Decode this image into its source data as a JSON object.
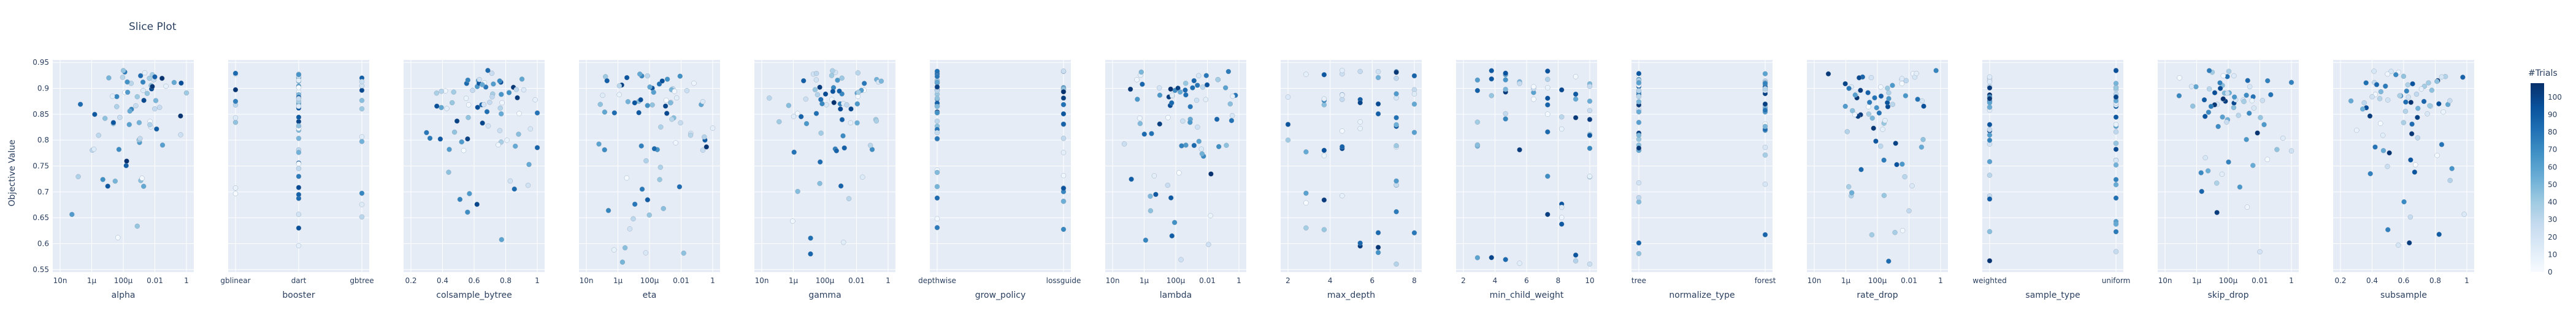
{
  "chart_data": {
    "type": "scatter",
    "title": "Slice Plot",
    "ylabel": "Objective Value",
    "ylim": [
      0.545,
      0.955
    ],
    "yticks": [
      "0.55",
      "0.6",
      "0.65",
      "0.7",
      "0.75",
      "0.8",
      "0.85",
      "0.9",
      "0.95"
    ],
    "grid": true,
    "colorbar": {
      "title": "#Trials",
      "range": [
        0,
        108
      ],
      "ticks": [
        "0",
        "10",
        "20",
        "30",
        "40",
        "50",
        "60",
        "70",
        "80",
        "90",
        "100"
      ],
      "colorscale": [
        "#f7fbff",
        "#deebf7",
        "#c6dbef",
        "#9ecae1",
        "#6baed6",
        "#4292c6",
        "#2171b5",
        "#08519c",
        "#08306b"
      ]
    },
    "panels": [
      {
        "param": "alpha",
        "xlabel": "alpha",
        "xscale": "log",
        "ticklabels": [
          "10n",
          "1µ",
          "100µ",
          "0.01",
          "1"
        ],
        "n": 70
      },
      {
        "param": "booster",
        "xlabel": "booster",
        "xscale": "category",
        "ticklabels": [
          "gblinear",
          "dart",
          "gbtree"
        ],
        "n": 60
      },
      {
        "param": "colsample_bytree",
        "xlabel": "colsample_bytree",
        "xscale": "linear",
        "ticklabels": [
          "0.2",
          "0.4",
          "0.6",
          "0.8",
          "1"
        ],
        "n": 75
      },
      {
        "param": "eta",
        "xlabel": "eta",
        "xscale": "log",
        "ticklabels": [
          "10n",
          "1µ",
          "100µ",
          "0.01",
          "1"
        ],
        "n": 75
      },
      {
        "param": "gamma",
        "xlabel": "gamma",
        "xscale": "log",
        "ticklabels": [
          "10n",
          "1µ",
          "100µ",
          "0.01",
          "1"
        ],
        "n": 70
      },
      {
        "param": "grow_policy",
        "xlabel": "grow_policy",
        "xscale": "category",
        "ticklabels": [
          "depthwise",
          "lossguide"
        ],
        "n": 60
      },
      {
        "param": "lambda",
        "xlabel": "lambda",
        "xscale": "log",
        "ticklabels": [
          "10n",
          "1µ",
          "100µ",
          "0.01",
          "1"
        ],
        "n": 75
      },
      {
        "param": "max_depth",
        "xlabel": "max_depth",
        "xscale": "linear",
        "ticklabels": [
          "2",
          "4",
          "6",
          "8"
        ],
        "n": 60
      },
      {
        "param": "min_child_weight",
        "xlabel": "min_child_weight",
        "xscale": "linear",
        "ticklabels": [
          "2",
          "4",
          "6",
          "8",
          "10"
        ],
        "n": 60
      },
      {
        "param": "normalize_type",
        "xlabel": "normalize_type",
        "xscale": "category",
        "ticklabels": [
          "tree",
          "forest"
        ],
        "n": 60
      },
      {
        "param": "rate_drop",
        "xlabel": "rate_drop",
        "xscale": "log",
        "ticklabels": [
          "10n",
          "1µ",
          "100µ",
          "0.01",
          "1"
        ],
        "n": 70
      },
      {
        "param": "sample_type",
        "xlabel": "sample_type",
        "xscale": "category",
        "ticklabels": [
          "weighted",
          "uniform"
        ],
        "n": 60
      },
      {
        "param": "skip_drop",
        "xlabel": "skip_drop",
        "xscale": "log",
        "ticklabels": [
          "10n",
          "1µ",
          "100µ",
          "0.01",
          "1"
        ],
        "n": 70
      },
      {
        "param": "subsample",
        "xlabel": "subsample",
        "xscale": "linear",
        "ticklabels": [
          "0.2",
          "0.4",
          "0.6",
          "0.8",
          "1"
        ],
        "n": 75
      }
    ]
  }
}
